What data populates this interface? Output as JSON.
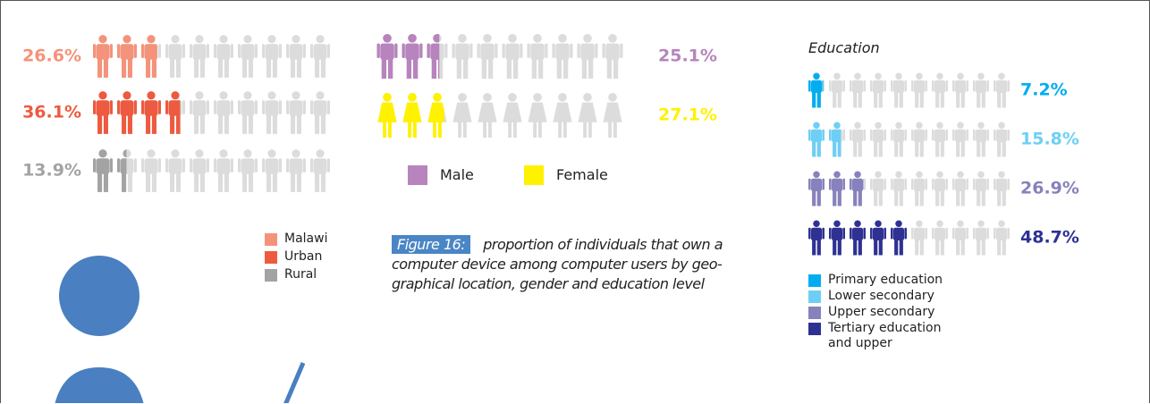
{
  "chart_data": [
    {
      "type": "pictogram",
      "categories": [
        "Malawi",
        "Urban",
        "Rural"
      ],
      "values": [
        26.6,
        36.1,
        13.9
      ],
      "value_labels": [
        "26.6%",
        "36.1%",
        "13.9%"
      ],
      "colors": [
        "#f4937a",
        "#ee5a3f",
        "#a3a3a3"
      ],
      "xlim": [
        0,
        100
      ]
    },
    {
      "type": "pictogram",
      "categories": [
        "Male",
        "Female"
      ],
      "values": [
        25.1,
        27.1
      ],
      "value_labels": [
        "25.1%",
        "27.1%"
      ],
      "colors": [
        "#b784bd",
        "#fff200"
      ],
      "xlim": [
        0,
        100
      ]
    },
    {
      "type": "pictogram",
      "title": "Education",
      "categories": [
        "Primary education",
        "Lower secondary",
        "Upper secondary",
        "Tertiary education and upper"
      ],
      "values": [
        7.2,
        15.8,
        26.9,
        48.7
      ],
      "value_labels": [
        "7.2%",
        "15.8%",
        "26.9%",
        "48.7%"
      ],
      "colors": [
        "#00aeef",
        "#6dcff6",
        "#8781bd",
        "#2e3192"
      ],
      "xlim": [
        0,
        100
      ]
    }
  ],
  "caption": {
    "label": "Figure 16:",
    "text": "proportion of individuals that own a computer device among computer users by geo-graphical location, gender and education level"
  }
}
